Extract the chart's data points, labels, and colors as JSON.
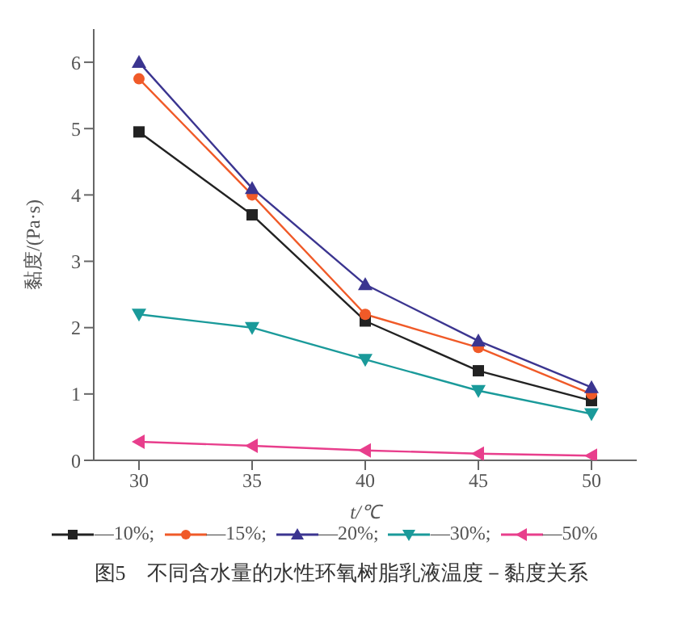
{
  "chart_data": {
    "type": "line",
    "title": "图5　不同含水量的水性环氧树脂乳液温度－黏度关系",
    "xlabel": "t/℃",
    "ylabel": "黏度/(Pa·s)",
    "x": [
      30,
      35,
      40,
      45,
      50
    ],
    "xlim": [
      28,
      52
    ],
    "xticks": [
      30,
      35,
      40,
      45,
      50
    ],
    "ylim": [
      0,
      6.5
    ],
    "yticks": [
      0,
      1,
      2,
      3,
      4,
      5,
      6
    ],
    "legend": "bottom",
    "line_style": "solid",
    "series": [
      {
        "name": "—10%;",
        "color": "#222222",
        "marker": "square",
        "values": [
          4.95,
          3.7,
          2.1,
          1.35,
          0.9
        ]
      },
      {
        "name": "—15%;",
        "color": "#f05a28",
        "marker": "circle",
        "values": [
          5.75,
          4.0,
          2.2,
          1.7,
          1.0
        ]
      },
      {
        "name": "—20%;",
        "color": "#3b3590",
        "marker": "triangle",
        "values": [
          6.0,
          4.1,
          2.65,
          1.8,
          1.1
        ]
      },
      {
        "name": "—30%;",
        "color": "#1a9a9a",
        "marker": "triangle-down",
        "values": [
          2.2,
          2.0,
          1.52,
          1.05,
          0.7
        ]
      },
      {
        "name": "—50%",
        "color": "#e83e8c",
        "marker": "triangle-left",
        "values": [
          0.28,
          0.22,
          0.15,
          0.1,
          0.07
        ]
      }
    ]
  }
}
